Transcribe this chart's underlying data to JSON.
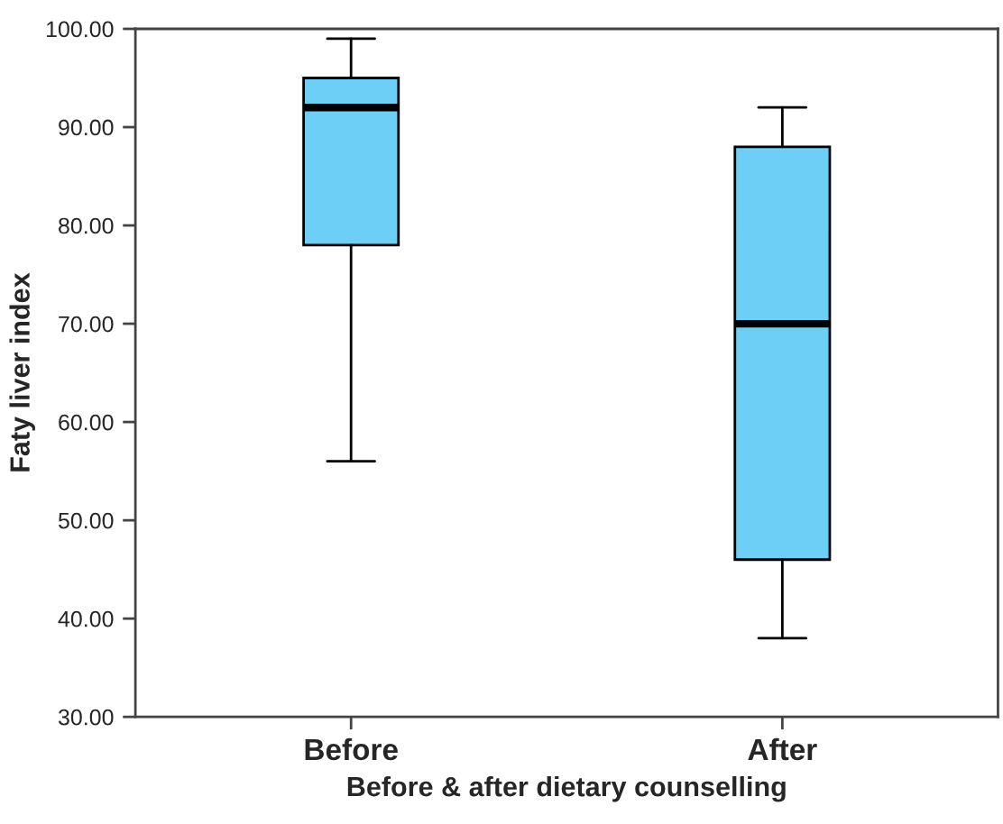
{
  "chart_data": {
    "type": "box",
    "xlabel": "Before & after dietary counselling",
    "ylabel": "Faty liver index",
    "categories": [
      "Before",
      "After"
    ],
    "boxes": [
      {
        "low": 56,
        "q1": 78,
        "median": 92,
        "q3": 95,
        "high": 99
      },
      {
        "low": 38,
        "q1": 46,
        "median": 70,
        "q3": 88,
        "high": 92
      }
    ],
    "color": "#6dcff6",
    "ylim": [
      30,
      100
    ],
    "yticks": [
      {
        "value": 30,
        "label": "30.00"
      },
      {
        "value": 40,
        "label": "40.00"
      },
      {
        "value": 50,
        "label": "50.00"
      },
      {
        "value": 60,
        "label": "60.00"
      },
      {
        "value": 70,
        "label": "70.00"
      },
      {
        "value": 80,
        "label": "80.00"
      },
      {
        "value": 90,
        "label": "90.00"
      },
      {
        "value": 100,
        "label": "100.00"
      }
    ],
    "grid": false
  }
}
